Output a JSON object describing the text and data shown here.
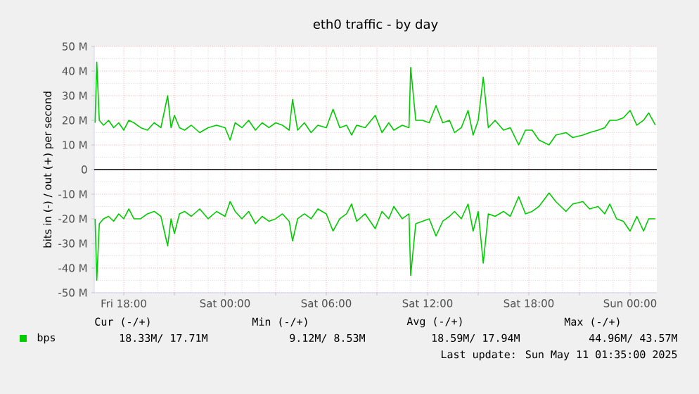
{
  "chart_data": {
    "type": "line",
    "title": "eth0 traffic - by day",
    "ylabel": "bits in (-) / out (+) per second",
    "xlim": [
      "2025-05-09T16:15",
      "2025-05-11T01:35"
    ],
    "ylim": [
      -50,
      50
    ],
    "xticks": [
      {
        "value": "2025-05-09T18:00",
        "label": "Fri 18:00"
      },
      {
        "value": "2025-05-09T21:00",
        "label": null
      },
      {
        "value": "2025-05-10T00:00",
        "label": "Sat 00:00"
      },
      {
        "value": "2025-05-10T03:00",
        "label": null
      },
      {
        "value": "2025-05-10T06:00",
        "label": "Sat 06:00"
      },
      {
        "value": "2025-05-10T09:00",
        "label": null
      },
      {
        "value": "2025-05-10T12:00",
        "label": "Sat 12:00"
      },
      {
        "value": "2025-05-10T15:00",
        "label": null
      },
      {
        "value": "2025-05-10T18:00",
        "label": "Sat 18:00"
      },
      {
        "value": "2025-05-10T21:00",
        "label": null
      },
      {
        "value": "2025-05-11T00:00",
        "label": "Sun 00:00"
      }
    ],
    "yticks": [
      {
        "value": -50,
        "label": "-50 M"
      },
      {
        "value": -40,
        "label": "-40 M"
      },
      {
        "value": -30,
        "label": "-30 M"
      },
      {
        "value": -20,
        "label": "-20 M"
      },
      {
        "value": -10,
        "label": "-10 M"
      },
      0,
      {
        "value": 10,
        "label": "10 M"
      },
      {
        "value": 20,
        "label": "20 M"
      },
      {
        "value": 30,
        "label": "30 M"
      },
      {
        "value": 40,
        "label": "40 M"
      },
      {
        "value": 50,
        "label": "50 M"
      }
    ],
    "grid": true,
    "legend": "bottom left",
    "marker": "none",
    "line_style": "solid",
    "ref_lines": [
      {
        "axis": "y",
        "value": 0,
        "color": "#000000"
      }
    ],
    "annotations": [
      "Cur (-/+)",
      "Min (-/+)",
      "Avg (-/+)",
      "Max (-/+)",
      "18.33M/ 17.71M",
      "9.12M/   8.53M",
      "18.59M/ 17.94M",
      "44.96M/ 43.57M",
      "Last update: Sun May 11 01:35:00 2025"
    ],
    "x": [
      "2025-05-09T16:18",
      "2025-05-09T16:24",
      "2025-05-09T16:33",
      "2025-05-09T16:48",
      "2025-05-09T17:06",
      "2025-05-09T17:24",
      "2025-05-09T17:42",
      "2025-05-09T18:00",
      "2025-05-09T18:18",
      "2025-05-09T18:36",
      "2025-05-09T19:00",
      "2025-05-09T19:24",
      "2025-05-09T19:48",
      "2025-05-09T20:12",
      "2025-05-09T20:36",
      "2025-05-09T20:48",
      "2025-05-09T21:00",
      "2025-05-09T21:18",
      "2025-05-09T21:36",
      "2025-05-09T22:00",
      "2025-05-09T22:30",
      "2025-05-09T23:00",
      "2025-05-09T23:30",
      "2025-05-10T00:00",
      "2025-05-10T00:18",
      "2025-05-10T00:36",
      "2025-05-10T01:00",
      "2025-05-10T01:24",
      "2025-05-10T01:48",
      "2025-05-10T02:12",
      "2025-05-10T02:36",
      "2025-05-10T03:00",
      "2025-05-10T03:24",
      "2025-05-10T03:48",
      "2025-05-10T04:00",
      "2025-05-10T04:18",
      "2025-05-10T04:42",
      "2025-05-10T05:06",
      "2025-05-10T05:30",
      "2025-05-10T06:00",
      "2025-05-10T06:24",
      "2025-05-10T06:48",
      "2025-05-10T07:12",
      "2025-05-10T07:30",
      "2025-05-10T07:48",
      "2025-05-10T08:18",
      "2025-05-10T08:54",
      "2025-05-10T09:18",
      "2025-05-10T09:42",
      "2025-05-10T10:00",
      "2025-05-10T10:30",
      "2025-05-10T10:54",
      "2025-05-10T11:00",
      "2025-05-10T11:18",
      "2025-05-10T11:42",
      "2025-05-10T12:06",
      "2025-05-10T12:30",
      "2025-05-10T12:54",
      "2025-05-10T13:18",
      "2025-05-10T13:36",
      "2025-05-10T14:00",
      "2025-05-10T14:24",
      "2025-05-10T14:42",
      "2025-05-10T15:00",
      "2025-05-10T15:18",
      "2025-05-10T15:36",
      "2025-05-10T16:00",
      "2025-05-10T16:30",
      "2025-05-10T16:54",
      "2025-05-10T17:24",
      "2025-05-10T17:48",
      "2025-05-10T18:12",
      "2025-05-10T18:36",
      "2025-05-10T19:12",
      "2025-05-10T19:36",
      "2025-05-10T20:12",
      "2025-05-10T20:36",
      "2025-05-10T21:12",
      "2025-05-10T21:36",
      "2025-05-10T22:06",
      "2025-05-10T22:30",
      "2025-05-10T22:48",
      "2025-05-10T23:12",
      "2025-05-10T23:36",
      "2025-05-11T00:00",
      "2025-05-11T00:24",
      "2025-05-11T00:48",
      "2025-05-11T01:06",
      "2025-05-11T01:30"
    ],
    "series": [
      {
        "name": "bps",
        "color": "#00cc00",
        "values": [
          19,
          43.6,
          20,
          18,
          20,
          17,
          19,
          16,
          20,
          19,
          17,
          16,
          19,
          17,
          30,
          17,
          22,
          17,
          16,
          18,
          15,
          17,
          18,
          17,
          12,
          19,
          17,
          20,
          16,
          19,
          17,
          19,
          18,
          16,
          28.5,
          16,
          19,
          15,
          18,
          17,
          24.5,
          17,
          18,
          14,
          18,
          17,
          22,
          15,
          19,
          16,
          18,
          17,
          41.5,
          20,
          20,
          19,
          26,
          19,
          20,
          15,
          17,
          24,
          14,
          20,
          37.5,
          17,
          20,
          16,
          17,
          10,
          16,
          16,
          12,
          10,
          14,
          15,
          13,
          14,
          15,
          16,
          17,
          20,
          20,
          21,
          24,
          18,
          20,
          23,
          18
        ]
      },
      {
        "color": "#00cc00",
        "values": [
          -20,
          -45,
          -22,
          -20,
          -19,
          -21,
          -18,
          -20,
          -16,
          -20,
          -20,
          -18,
          -17,
          -19,
          -31,
          -20,
          -26,
          -18,
          -17,
          -19,
          -16,
          -20,
          -17,
          -19,
          -13,
          -17,
          -20,
          -17,
          -22,
          -19,
          -21,
          -20,
          -18,
          -21,
          -29,
          -20,
          -18,
          -20,
          -16,
          -18,
          -25,
          -20,
          -18,
          -14,
          -21,
          -18,
          -24,
          -17,
          -20,
          -15,
          -20,
          -18,
          -43,
          -22,
          -21,
          -20,
          -27,
          -21,
          -19,
          -17,
          -20,
          -14,
          -25,
          -17,
          -38,
          -18,
          -19,
          -17,
          -19,
          -11,
          -18,
          -17,
          -15,
          -9.5,
          -13,
          -17,
          -14,
          -13,
          -16,
          -15,
          -18,
          -14,
          -20,
          -21,
          -25,
          -19,
          -25,
          -20,
          -20
        ]
      }
    ]
  }
}
